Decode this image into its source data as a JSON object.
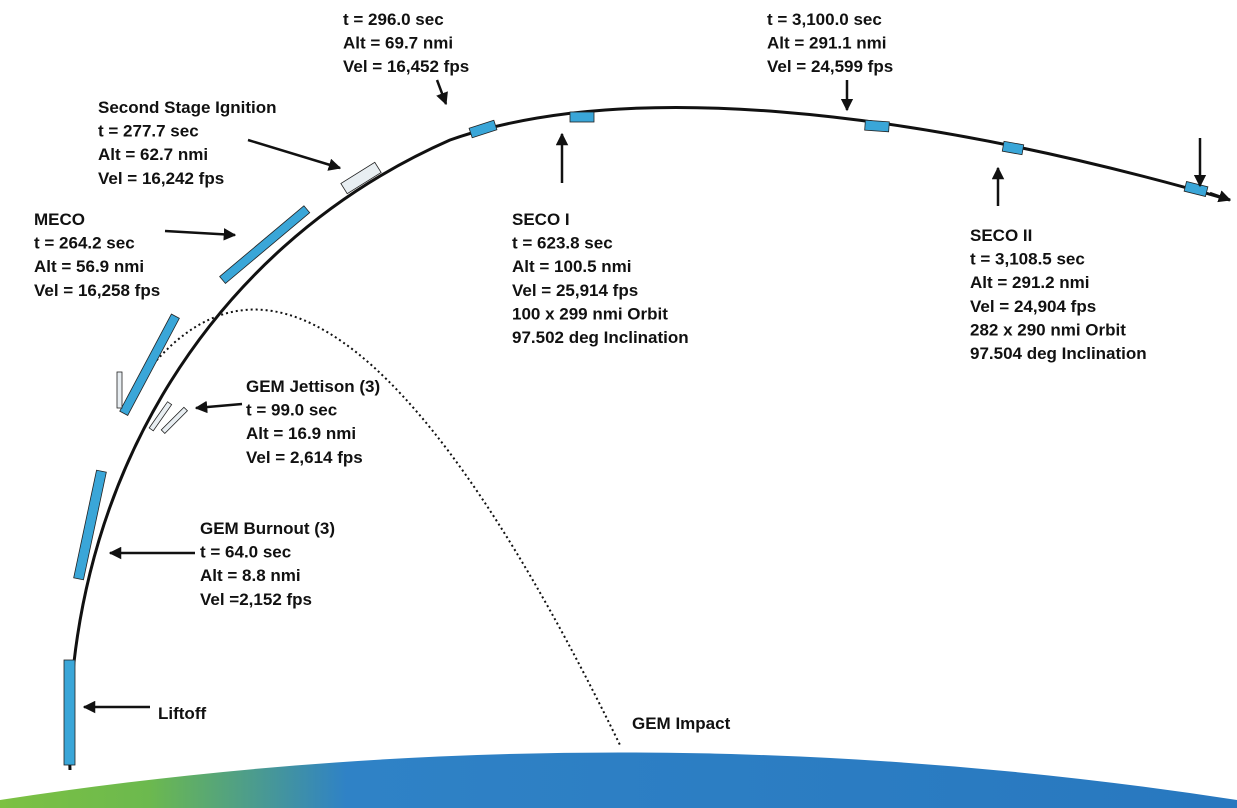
{
  "events": [
    {
      "lines": [
        "t = 296.0 sec",
        "Alt = 69.7 nmi",
        "Vel = 16,452 fps"
      ]
    },
    {
      "lines": [
        "t = 3,100.0 sec",
        "Alt = 291.1 nmi",
        "Vel = 24,599 fps"
      ]
    },
    {
      "lines": [
        "Second Stage Ignition",
        "t = 277.7 sec",
        "Alt = 62.7 nmi",
        "Vel = 16,242 fps"
      ]
    },
    {
      "lines": [
        "MECO",
        "t = 264.2 sec",
        "Alt = 56.9 nmi",
        "Vel = 16,258 fps"
      ]
    },
    {
      "lines": [
        "SECO I",
        "t = 623.8 sec",
        "Alt = 100.5 nmi",
        "Vel = 25,914 fps",
        "100 x 299 nmi Orbit",
        "97.502 deg Inclination"
      ]
    },
    {
      "lines": [
        "SECO II",
        "t = 3,108.5 sec",
        "Alt = 291.2 nmi",
        "Vel = 24,904 fps",
        "282 x 290 nmi Orbit",
        "97.504 deg Inclination"
      ]
    },
    {
      "lines": [
        "GEM Jettison (3)",
        "t = 99.0 sec",
        "Alt = 16.9 nmi",
        "Vel = 2,614 fps"
      ]
    },
    {
      "lines": [
        "GEM Burnout (3)",
        "t = 64.0 sec",
        "Alt = 8.8 nmi",
        "Vel =2,152 fps"
      ]
    },
    {
      "lines": [
        "Liftoff"
      ]
    },
    {
      "lines": [
        "GEM Impact"
      ]
    }
  ]
}
